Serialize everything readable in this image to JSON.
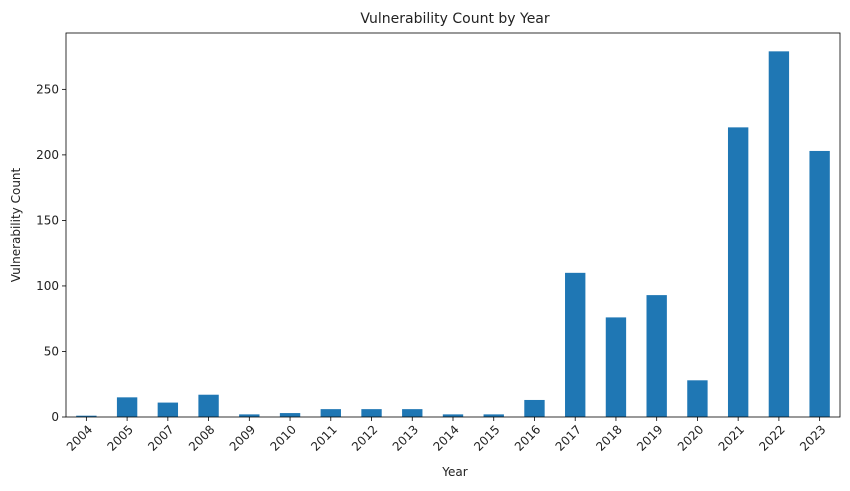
{
  "chart_data": {
    "type": "bar",
    "title": "Vulnerability Count by Year",
    "xlabel": "Year",
    "ylabel": "Vulnerability Count",
    "categories": [
      "2004",
      "2005",
      "2007",
      "2008",
      "2009",
      "2010",
      "2011",
      "2012",
      "2013",
      "2014",
      "2015",
      "2016",
      "2017",
      "2018",
      "2019",
      "2020",
      "2021",
      "2022",
      "2023"
    ],
    "values": [
      1,
      15,
      11,
      17,
      2,
      3,
      6,
      6,
      6,
      2,
      2,
      13,
      110,
      76,
      93,
      28,
      221,
      279,
      203
    ],
    "ylim": [
      0,
      293
    ],
    "yticks": [
      "0",
      "50",
      "100",
      "150",
      "200",
      "250"
    ],
    "bar_color": "#1f77b4",
    "grid": false,
    "legend": "none"
  }
}
